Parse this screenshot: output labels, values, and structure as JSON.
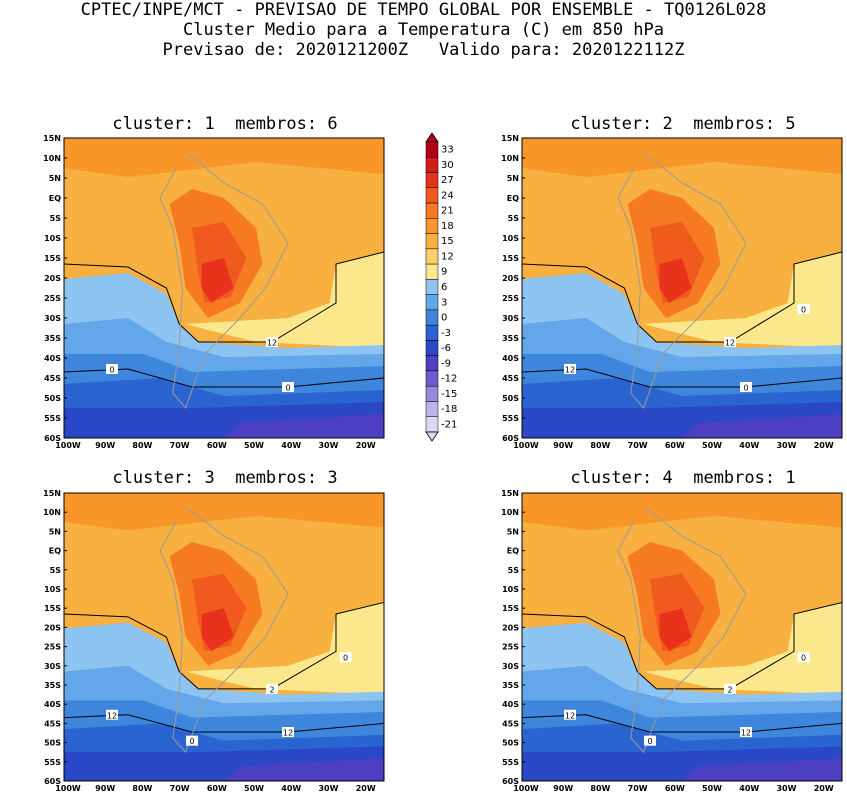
{
  "header": {
    "line1": "CPTEC/INPE/MCT - PREVISAO DE TEMPO GLOBAL POR ENSEMBLE - TQ0126L028",
    "line2": "Cluster Medio para a Temperatura (C) em 850 hPa",
    "line3": "Previsao de: 2020121200Z   Valido para: 2020122112Z"
  },
  "panels": [
    {
      "title": "cluster: 1  membros: 6",
      "contour_labels": [
        "12",
        "0",
        "0"
      ]
    },
    {
      "title": "cluster: 2  membros: 5",
      "contour_labels": [
        "12",
        "12",
        "0",
        "0"
      ]
    },
    {
      "title": "cluster: 3  membros: 3",
      "contour_labels": [
        "2",
        "12",
        "12",
        "0",
        "0"
      ]
    },
    {
      "title": "cluster: 4  membros: 1",
      "contour_labels": [
        "2",
        "12",
        "12",
        "0",
        "0"
      ]
    }
  ],
  "lat_labels": [
    "15N",
    "10N",
    "5N",
    "EQ",
    "5S",
    "10S",
    "15S",
    "20S",
    "25S",
    "30S",
    "35S",
    "40S",
    "45S",
    "50S",
    "55S",
    "60S"
  ],
  "lon_labels": [
    "100W",
    "90W",
    "80W",
    "70W",
    "60W",
    "50W",
    "40W",
    "30W",
    "20W"
  ],
  "colorbar": {
    "labels": [
      "33",
      "30",
      "27",
      "24",
      "21",
      "18",
      "15",
      "12",
      "9",
      "6",
      "3",
      "0",
      "-3",
      "-6",
      "-9",
      "-12",
      "-15",
      "-18",
      "-21"
    ],
    "colors": [
      "#b0001e",
      "#d21a1a",
      "#e8321c",
      "#f05a1e",
      "#f67a22",
      "#f9962a",
      "#f8b040",
      "#f9d066",
      "#fbe88c",
      "#8ec4f2",
      "#64a6ea",
      "#3e86dc",
      "#2a64d0",
      "#2a48c6",
      "#4c3fc2",
      "#6f5ad0",
      "#9a88dc",
      "#bfb2ea",
      "#ddd6f6"
    ]
  }
}
